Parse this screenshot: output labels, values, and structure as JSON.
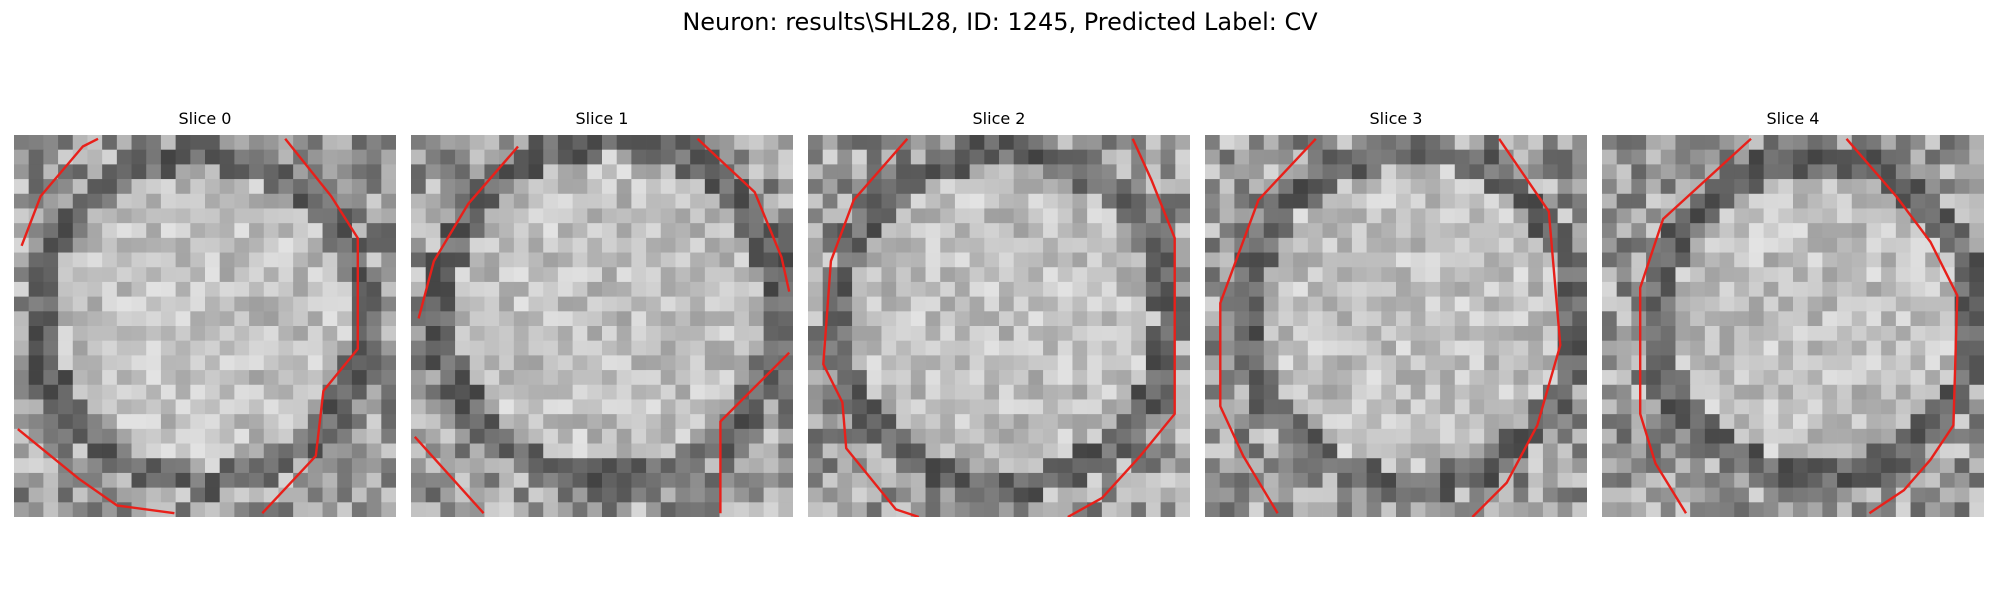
{
  "figure": {
    "title": "Neuron: results\\SHL28, ID: 1245, Predicted Label: CV"
  },
  "slices": [
    {
      "label": "Slice 0"
    },
    {
      "label": "Slice 1"
    },
    {
      "label": "Slice 2"
    },
    {
      "label": "Slice 3"
    },
    {
      "label": "Slice 4"
    }
  ],
  "colors": {
    "contour": "#e8201a",
    "background": "#ffffff"
  }
}
